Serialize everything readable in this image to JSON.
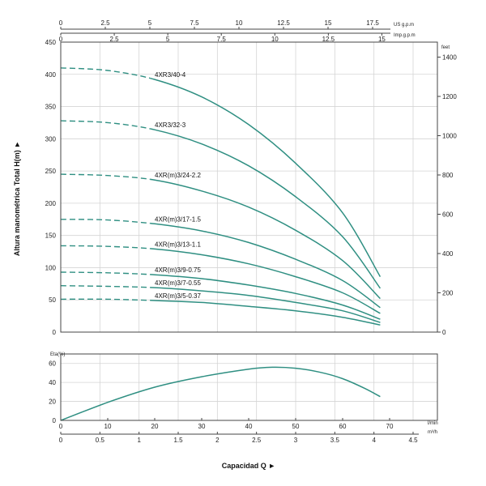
{
  "colors": {
    "curve": "#2f8f82",
    "grid": "#d4d4d4",
    "frame": "#444444",
    "text": "#222222"
  },
  "y_axis_title": "Altura manométrica Total H(m) ►",
  "x_axis_title": "Capacidad Q ►",
  "top_scales": [
    {
      "unit": "US g.p.m",
      "ticks": [
        "0",
        "2.5",
        "5",
        "7.5",
        "10",
        "12.5",
        "15",
        "17.5"
      ],
      "values": [
        0,
        2.5,
        5,
        7.5,
        10,
        12.5,
        15,
        17.5
      ],
      "max_value": 18.5
    },
    {
      "unit": "Imp.g.p.m",
      "ticks": [
        "0",
        "2.5",
        "5",
        "7.5",
        "10",
        "12.5",
        "15"
      ],
      "values": [
        0,
        2.5,
        5,
        7.5,
        10,
        12.5,
        15
      ],
      "max_value": 15.4
    }
  ],
  "right_scale": {
    "unit": "feet",
    "ticks": [
      "0",
      "200",
      "400",
      "600",
      "800",
      "1000",
      "1200",
      "1400"
    ],
    "values": [
      0,
      200,
      400,
      600,
      800,
      1000,
      1200,
      1400
    ]
  },
  "bottom_scales": [
    {
      "unit": "l/min",
      "ticks": [
        "0",
        "10",
        "20",
        "30",
        "40",
        "50",
        "60",
        "70"
      ],
      "values": [
        0,
        10,
        20,
        30,
        40,
        50,
        60,
        70
      ]
    },
    {
      "unit": "m³/h",
      "ticks": [
        "0",
        "0.5",
        "1",
        "1.5",
        "2",
        "2.5",
        "3",
        "3.5",
        "4",
        "4.5"
      ],
      "values": [
        0,
        0.5,
        1,
        1.5,
        2,
        2.5,
        3,
        3.5,
        4,
        4.5
      ]
    }
  ],
  "chart_data": [
    {
      "type": "line",
      "title": "",
      "xlabel": "Capacidad Q",
      "ylabel": "Altura manométrica Total H(m)",
      "x_unit": "l/min",
      "xlim": [
        0,
        70
      ],
      "ylim": [
        0,
        450
      ],
      "yticks": [
        "0",
        "50",
        "100",
        "150",
        "200",
        "250",
        "300",
        "350",
        "400",
        "450"
      ],
      "ytick_values": [
        0,
        50,
        100,
        150,
        200,
        250,
        300,
        350,
        400,
        450
      ],
      "grid": true,
      "dashed_until_x": 19,
      "x": [
        0,
        10,
        20,
        30,
        40,
        50,
        60,
        68
      ],
      "series": [
        {
          "name": "4XR3/40-4",
          "label_x": 20,
          "values": [
            410,
            406,
            392,
            365,
            322,
            262,
            185,
            86
          ]
        },
        {
          "name": "4XR3/32-3",
          "label_x": 20,
          "values": [
            328,
            325,
            314,
            292,
            258,
            210,
            148,
            68
          ]
        },
        {
          "name": "4XR(m)3/24-2.2",
          "label_x": 20,
          "values": [
            245,
            243,
            236,
            219,
            194,
            158,
            111,
            52
          ]
        },
        {
          "name": "4XR(m)3/17-1.5",
          "label_x": 20,
          "values": [
            175,
            174,
            168,
            157,
            139,
            113,
            80,
            38
          ]
        },
        {
          "name": "4XR(m)3/13-1.1",
          "label_x": 20,
          "values": [
            134,
            133,
            129,
            120,
            106,
            86,
            61,
            29
          ]
        },
        {
          "name": "4XR(m)3/9-0.75",
          "label_x": 20,
          "values": [
            93,
            92,
            89,
            83,
            73,
            60,
            42,
            20
          ]
        },
        {
          "name": "4XR(m)3/7-0.55",
          "label_x": 20,
          "values": [
            72,
            71,
            69,
            64,
            57,
            46,
            33,
            15
          ]
        },
        {
          "name": "4XR(m)3/5-0.37",
          "label_x": 20,
          "values": [
            51,
            51,
            49,
            46,
            40,
            33,
            23,
            11
          ]
        }
      ]
    },
    {
      "type": "line",
      "title": "",
      "ylabel": "Eta(%)",
      "x_unit": "l/min",
      "xlim": [
        0,
        70
      ],
      "ylim": [
        0,
        70
      ],
      "yticks": [
        "0",
        "20",
        "40",
        "60"
      ],
      "ytick_values": [
        0,
        20,
        40,
        60
      ],
      "grid": true,
      "x": [
        0,
        10,
        20,
        30,
        40,
        45,
        50,
        55,
        60,
        65,
        68
      ],
      "series": [
        {
          "values": [
            0,
            19,
            35,
            46,
            54,
            56,
            55,
            51,
            44,
            33,
            25
          ]
        }
      ]
    }
  ]
}
